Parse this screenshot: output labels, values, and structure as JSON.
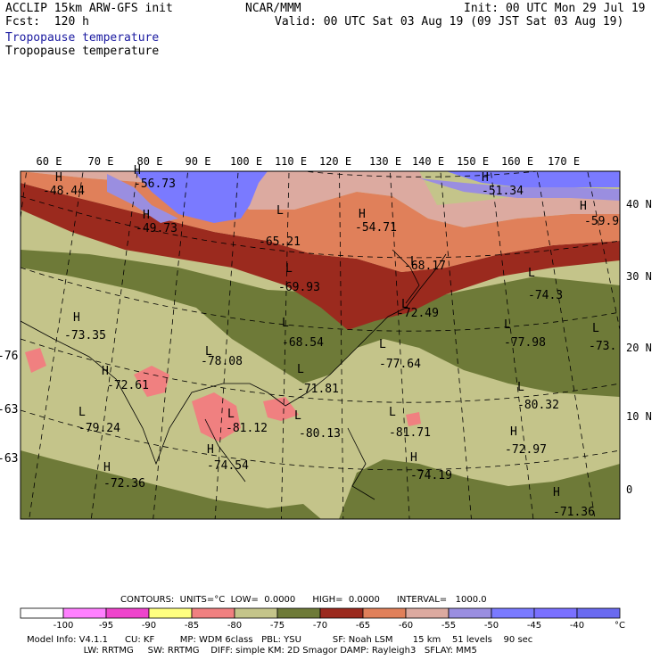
{
  "header": {
    "title_left": "ACCLIP 15km ARW-GFS init",
    "forecast": "Fcst:  120 h",
    "center": "NCAR/MMM",
    "init": "Init: 00 UTC Mon 29 Jul 19",
    "valid": "Valid: 00 UTC Sat 03 Aug 19 (09 JST Sat 03 Aug 19)",
    "field_line1": "Tropopause temperature",
    "field_line2": "Tropopause temperature"
  },
  "map": {
    "lon_labels": [
      "60 E",
      "70 E",
      "80 E",
      "90 E",
      "100 E",
      "110 E",
      "120 E",
      "130 E",
      "140 E",
      "150 E",
      "160 E",
      "170 E"
    ],
    "lat_labels": [
      "40 N",
      "30 N",
      "20 N",
      "10 N",
      "0"
    ],
    "pressure_centers": [
      {
        "type": "H",
        "value": "-48.44"
      },
      {
        "type": "H",
        "value": "-56.73"
      },
      {
        "type": "H",
        "value": "-49.73"
      },
      {
        "type": "L",
        "value": "-65.21"
      },
      {
        "type": "H",
        "value": "-54.71"
      },
      {
        "type": "H",
        "value": "-51.34"
      },
      {
        "type": "H",
        "value": "-59.9"
      },
      {
        "type": "L",
        "value": "-69.93"
      },
      {
        "type": "L",
        "value": "-68.17"
      },
      {
        "type": "L",
        "value": "-74.3"
      },
      {
        "type": "L",
        "value": "-72.49"
      },
      {
        "type": "H",
        "value": "-73.35"
      },
      {
        "type": "L",
        "value": "-68.54"
      },
      {
        "type": "L",
        "value": "-77.98"
      },
      {
        "type": "L",
        "value": "-73."
      },
      {
        "type": "L",
        "value": "-78.08"
      },
      {
        "type": "L",
        "value": "-77.64"
      },
      {
        "type": "H",
        "value": "-72.61"
      },
      {
        "type": "L",
        "value": "-71.81"
      },
      {
        "type": "L",
        "value": "-80.32"
      },
      {
        "type": "L",
        "value": "-79.24"
      },
      {
        "type": "L",
        "value": "-81.12"
      },
      {
        "type": "L",
        "value": "-80.13"
      },
      {
        "type": "L",
        "value": "-81.71"
      },
      {
        "type": "H",
        "value": "-74.54"
      },
      {
        "type": "H",
        "value": "-72.97"
      },
      {
        "type": "H",
        "value": "-72.36"
      },
      {
        "type": "H",
        "value": "-74.19"
      },
      {
        "type": "H",
        "value": "-71.36"
      },
      {
        "type": "",
        "value": "-76"
      },
      {
        "type": "",
        "value": "-63"
      },
      {
        "type": "",
        "value": "-63"
      }
    ]
  },
  "contours_line": "CONTOURS:  UNITS=°C  LOW=  0.0000      HIGH=  0.0000      INTERVAL=   1000.0",
  "colorbar": {
    "labels": [
      "-100",
      "-95",
      "-90",
      "-85",
      "-80",
      "-75",
      "-70",
      "-65",
      "-60",
      "-55",
      "-50",
      "-45",
      "-40",
      "°C"
    ],
    "colors": [
      "#ffffff",
      "#ff80ff",
      "#ee44cc",
      "#ffff80",
      "#f08080",
      "#c4c48a",
      "#6e7a38",
      "#9b2a1e",
      "#e0805a",
      "#dcaaa0",
      "#9a8ee0",
      "#7a7aff",
      "#7a70ff",
      "#6a6af0"
    ]
  },
  "footer": {
    "line1": "Model Info: V4.1.1      CU: KF         MP: WDM 6class   PBL: YSU           SF: Noah LSM       15 km    51 levels    90 sec",
    "line2": "                    LW: RRTMG     SW: RRTMG    DIFF: simple KM: 2D Smagor DAMP: Rayleigh3   SFLAY: MM5"
  }
}
